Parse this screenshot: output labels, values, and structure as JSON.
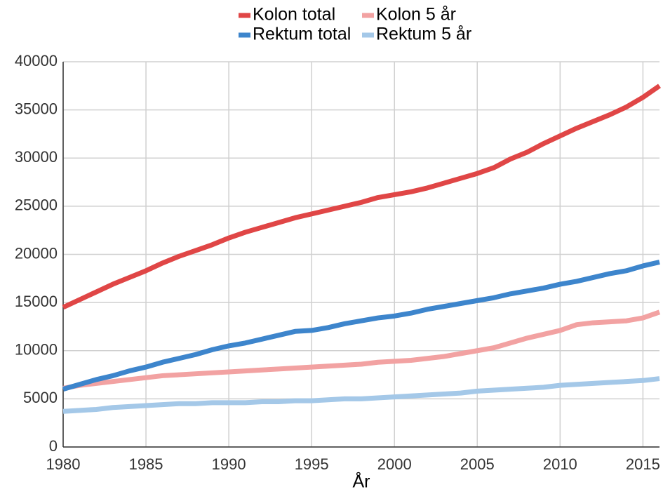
{
  "chart_data": {
    "type": "line",
    "x": [
      1980,
      1981,
      1982,
      1983,
      1984,
      1985,
      1986,
      1987,
      1988,
      1989,
      1990,
      1991,
      1992,
      1993,
      1994,
      1995,
      1996,
      1997,
      1998,
      1999,
      2000,
      2001,
      2002,
      2003,
      2004,
      2005,
      2006,
      2007,
      2008,
      2009,
      2010,
      2011,
      2012,
      2013,
      2014,
      2015,
      2016
    ],
    "series": [
      {
        "name": "Kolon total",
        "color": "#e04646",
        "values": [
          14500,
          15300,
          16100,
          16900,
          17600,
          18300,
          19100,
          19800,
          20400,
          21000,
          21700,
          22300,
          22800,
          23300,
          23800,
          24200,
          24600,
          25000,
          25400,
          25900,
          26200,
          26500,
          26900,
          27400,
          27900,
          28400,
          29000,
          29900,
          30600,
          31500,
          32300,
          33100,
          33800,
          34500,
          35300,
          36300,
          37500
        ]
      },
      {
        "name": "Kolon 5 år",
        "color": "#f2a2a2",
        "values": [
          6100,
          6400,
          6600,
          6800,
          7000,
          7200,
          7400,
          7500,
          7600,
          7700,
          7800,
          7900,
          8000,
          8100,
          8200,
          8300,
          8400,
          8500,
          8600,
          8800,
          8900,
          9000,
          9200,
          9400,
          9700,
          10000,
          10300,
          10800,
          11300,
          11700,
          12100,
          12700,
          12900,
          13000,
          13100,
          13400,
          14000
        ]
      },
      {
        "name": "Rektum total",
        "color": "#3d85cc",
        "values": [
          6000,
          6500,
          7000,
          7400,
          7900,
          8300,
          8800,
          9200,
          9600,
          10100,
          10500,
          10800,
          11200,
          11600,
          12000,
          12100,
          12400,
          12800,
          13100,
          13400,
          13600,
          13900,
          14300,
          14600,
          14900,
          15200,
          15500,
          15900,
          16200,
          16500,
          16900,
          17200,
          17600,
          18000,
          18300,
          18800,
          19200
        ]
      },
      {
        "name": "Rektum 5 år",
        "color": "#a4c8e8",
        "values": [
          3700,
          3800,
          3900,
          4100,
          4200,
          4300,
          4400,
          4500,
          4500,
          4600,
          4600,
          4600,
          4700,
          4700,
          4800,
          4800,
          4900,
          5000,
          5000,
          5100,
          5200,
          5300,
          5400,
          5500,
          5600,
          5800,
          5900,
          6000,
          6100,
          6200,
          6400,
          6500,
          6600,
          6700,
          6800,
          6900,
          7100
        ]
      }
    ],
    "xlabel": "År",
    "xlim": [
      1980,
      2016
    ],
    "xticks": [
      1980,
      1985,
      1990,
      1995,
      2000,
      2005,
      2010,
      2015
    ],
    "ylim": [
      0,
      40000
    ],
    "yticks": [
      0,
      5000,
      10000,
      15000,
      20000,
      25000,
      30000,
      35000,
      40000
    ],
    "grid": true,
    "legend": "top"
  }
}
